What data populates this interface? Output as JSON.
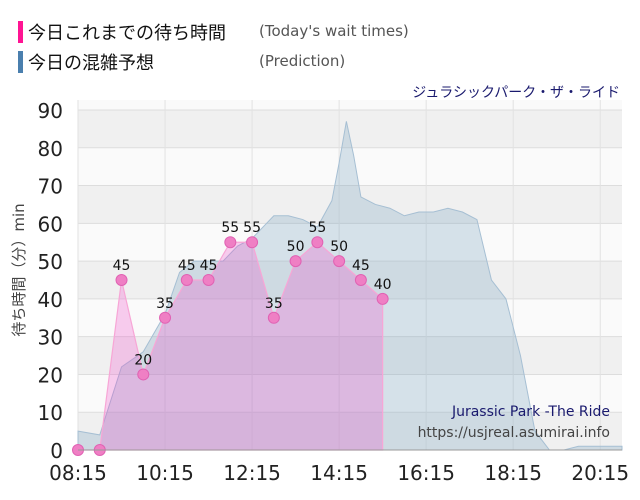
{
  "legend": {
    "items": [
      {
        "label_ja": "今日これまでの待ち時間",
        "label_en": "(Today's wait times)",
        "color": "#ff1493"
      },
      {
        "label_ja": "今日の混雑予想",
        "label_en": "(Prediction)",
        "color": "#4a7fae"
      }
    ]
  },
  "chart_data": {
    "type": "area",
    "title": "ジュラシックパーク・ザ・ライド",
    "ylabel": "待ち時間（分）min",
    "xlabel": "",
    "ylim": [
      0,
      90
    ],
    "xlim": [
      "08:15",
      "20:45"
    ],
    "yticks": [
      "0",
      "10",
      "20",
      "30",
      "40",
      "50",
      "60",
      "70",
      "80",
      "90"
    ],
    "xticks": [
      "08:15",
      "10:15",
      "12:15",
      "14:15",
      "16:15",
      "18:15",
      "20:15"
    ],
    "grid": true,
    "watermark": {
      "line1": "Jurassic Park -The Ride",
      "line2": "https://usjreal.asumirai.info"
    },
    "series": [
      {
        "name": "今日これまでの待ち時間",
        "x": [
          "08:15",
          "08:45",
          "09:15",
          "09:45",
          "10:15",
          "10:45",
          "11:15",
          "11:45",
          "12:15",
          "12:45",
          "13:15",
          "13:45",
          "14:15",
          "14:45",
          "15:15"
        ],
        "values": [
          0,
          0,
          45,
          20,
          35,
          45,
          45,
          55,
          55,
          35,
          50,
          55,
          50,
          45,
          40
        ],
        "color": "#ff1493"
      },
      {
        "name": "今日の混雑予想",
        "x": [
          "08:15",
          "08:45",
          "09:15",
          "09:45",
          "10:15",
          "10:35",
          "10:55",
          "11:15",
          "11:35",
          "11:55",
          "12:15",
          "12:25",
          "12:35",
          "12:45",
          "13:05",
          "13:25",
          "13:45",
          "14:05",
          "14:15",
          "14:25",
          "14:35",
          "14:45",
          "15:05",
          "15:25",
          "15:45",
          "16:05",
          "16:25",
          "16:45",
          "17:05",
          "17:25",
          "17:45",
          "18:05",
          "18:25",
          "18:45",
          "19:05",
          "19:25",
          "19:45",
          "20:05",
          "20:25",
          "20:45"
        ],
        "values": [
          5,
          4,
          22,
          26,
          36,
          47,
          50,
          50,
          50,
          54,
          56,
          58,
          60,
          62,
          62,
          61,
          59,
          66,
          76,
          87,
          78,
          67,
          65,
          64,
          62,
          63,
          63,
          64,
          63,
          61,
          45,
          40,
          25,
          5,
          0,
          0,
          1,
          1,
          1,
          1
        ],
        "color": "#a8c4dd"
      }
    ]
  }
}
